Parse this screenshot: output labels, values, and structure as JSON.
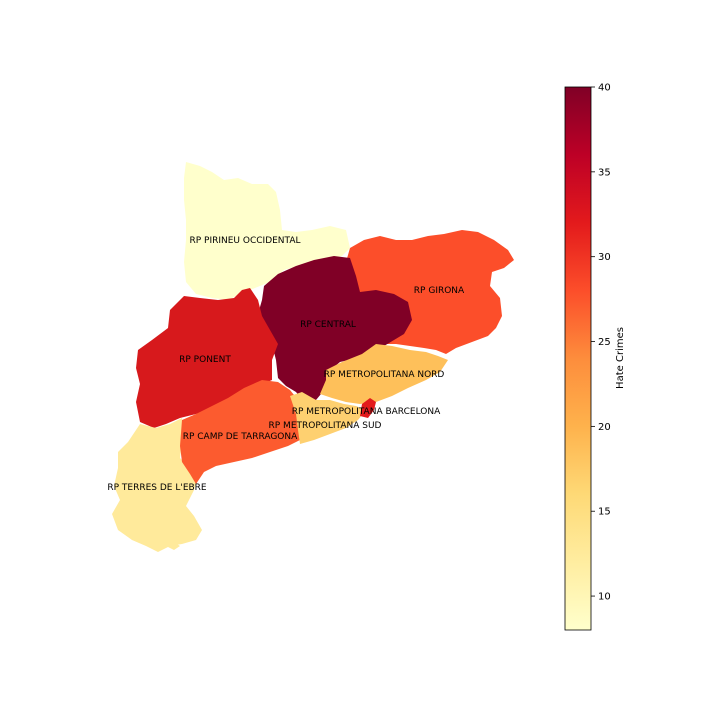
{
  "chart_data": {
    "type": "heatmap",
    "colormap": "YlOrRd",
    "colorbar": {
      "label": "Hate Crimes",
      "min": 8,
      "max": 40,
      "ticks": [
        10,
        15,
        20,
        25,
        30,
        35,
        40
      ],
      "tick_labels": [
        "10",
        "15",
        "20",
        "25",
        "30",
        "35",
        "40"
      ]
    },
    "regions": [
      {
        "name": "RP PIRINEU OCCIDENTAL",
        "value": 8,
        "color": "#ffffcc"
      },
      {
        "name": "RP GIRONA",
        "value": 29,
        "color": "#fc4e2a"
      },
      {
        "name": "RP CENTRAL",
        "value": 40,
        "color": "#800026"
      },
      {
        "name": "RP PONENT",
        "value": 34,
        "color": "#d7191c"
      },
      {
        "name": "RP METROPOLITANA NORD",
        "value": 20,
        "color": "#fec05a"
      },
      {
        "name": "RP METROPOLITANA BARCELONA",
        "value": 33,
        "color": "#e31a1c"
      },
      {
        "name": "RP METROPOLITANA SUD",
        "value": 18,
        "color": "#fed070"
      },
      {
        "name": "RP CAMP DE TARRAGONA",
        "value": 28,
        "color": "#fc5b2f"
      },
      {
        "name": "RP TERRES DE L'EBRE",
        "value": 13,
        "color": "#ffea9b"
      }
    ]
  }
}
